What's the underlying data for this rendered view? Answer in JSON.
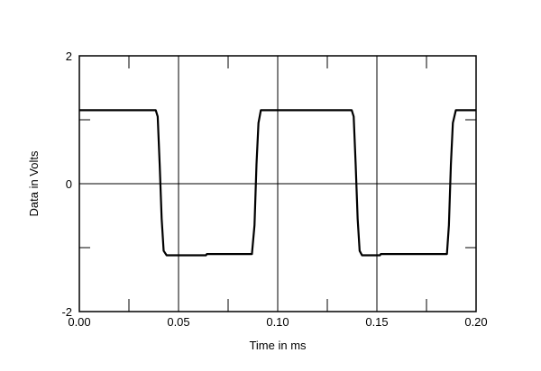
{
  "chart_data": {
    "type": "line",
    "xlabel": "Time in ms",
    "ylabel": "Data in Volts",
    "xlim": [
      0.0,
      0.2
    ],
    "ylim": [
      -2,
      2
    ],
    "x_ticks": [
      "0.00",
      "0.05",
      "0.10",
      "0.15",
      "0.20"
    ],
    "y_ticks": [
      "2",
      "0",
      "-2"
    ],
    "grid": true,
    "series": [
      {
        "color": "#000000",
        "x": [
          0.0,
          0.0385,
          0.0395,
          0.0405,
          0.0415,
          0.0425,
          0.044,
          0.0638,
          0.0643,
          0.087,
          0.0883,
          0.0893,
          0.0903,
          0.0915,
          0.093,
          0.1373,
          0.1383,
          0.1393,
          0.1403,
          0.1413,
          0.1425,
          0.1515,
          0.152,
          0.1853,
          0.1863,
          0.1873,
          0.1883,
          0.1898,
          0.1915,
          0.2
        ],
        "y": [
          1.15,
          1.15,
          1.05,
          0.3,
          -0.55,
          -1.05,
          -1.12,
          -1.12,
          -1.1,
          -1.1,
          -0.65,
          0.3,
          0.95,
          1.15,
          1.15,
          1.15,
          1.05,
          0.3,
          -0.55,
          -1.05,
          -1.12,
          -1.12,
          -1.1,
          -1.1,
          -0.65,
          0.3,
          0.95,
          1.15,
          1.15,
          1.15
        ]
      }
    ]
  }
}
